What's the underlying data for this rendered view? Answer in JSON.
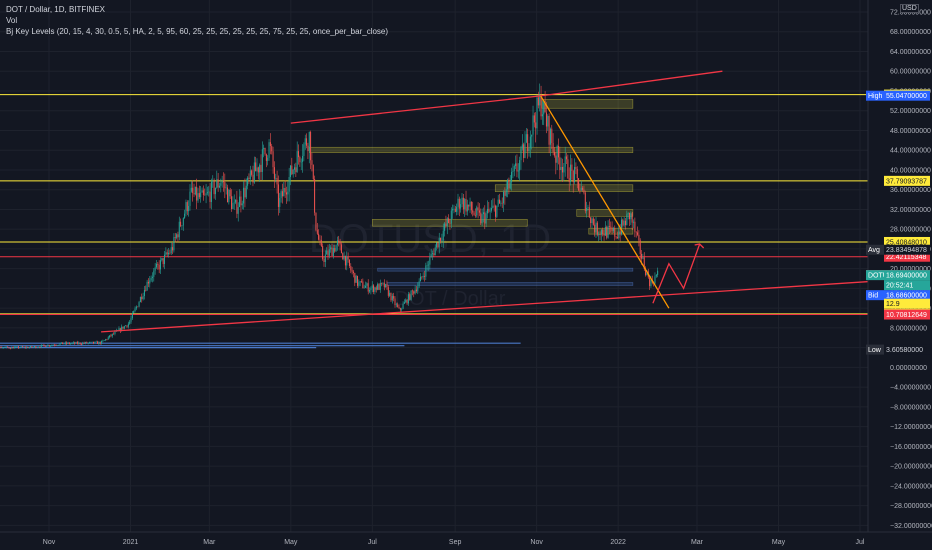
{
  "header": {
    "symbol_line": "DOT / Dollar, 1D, BITFINEX",
    "volume_label": "Vol",
    "indicator_line": "Bj Key Levels (20, 15, 4, 30, 0.5, 5, HA, 2, 5, 95, 60, 25, 25, 25, 25, 25, 25, 75, 25, 25, once_per_bar_close)"
  },
  "currency_badge": "USD",
  "watermark": {
    "symbol": "DOTUSD, 1D",
    "description": "DOT / Dollar"
  },
  "chart_data": {
    "type": "candlestick",
    "price_axis": {
      "ticks": [
        72,
        68,
        64,
        60,
        56,
        52,
        48,
        44,
        40,
        36,
        32,
        28,
        24,
        20,
        16,
        12,
        8,
        4,
        0,
        -4,
        -8,
        -12,
        -16,
        -20,
        -24,
        -28,
        -32
      ],
      "tick_labels": [
        "72.00000000",
        "68.00000000",
        "64.00000000",
        "60.00000000",
        "56.00000000",
        "52.00000000",
        "48.00000000",
        "44.00000000",
        "40.00000000",
        "36.00000000",
        "32.00000000",
        "28.00000000",
        "24.00000000",
        "20.00000000",
        "16.00000000",
        "12.00000000",
        "8.00000000",
        "4.00000000",
        "0.00000000",
        "−4.00000000",
        "−8.00000000",
        "−12.00000000",
        "−16.00000000",
        "−20.00000000",
        "−24.00000000",
        "−28.00000000",
        "−32.00000000"
      ]
    },
    "time_axis": {
      "labels": [
        "Nov",
        "2021",
        "Mar",
        "May",
        "Jul",
        "Sep",
        "Nov",
        "2022",
        "Mar",
        "May",
        "Jul"
      ],
      "dates": [
        "2020-11-01",
        "2021-01-01",
        "2021-03-01",
        "2021-05-01",
        "2021-07-01",
        "2021-09-01",
        "2021-11-01",
        "2022-01-01",
        "2022-03-01",
        "2022-05-01",
        "2022-07-01"
      ]
    },
    "price_path": [
      [
        "2020-08-20",
        2.8
      ],
      [
        "2020-09-10",
        4.2
      ],
      [
        "2020-10-01",
        4.0
      ],
      [
        "2020-10-20",
        4.1
      ],
      [
        "2020-11-10",
        4.8
      ],
      [
        "2020-12-10",
        5.0
      ],
      [
        "2020-12-31",
        9.0
      ],
      [
        "2021-01-15",
        18.0
      ],
      [
        "2021-02-01",
        24.0
      ],
      [
        "2021-02-15",
        35.0
      ],
      [
        "2021-02-25",
        34.0
      ],
      [
        "2021-03-10",
        38.0
      ],
      [
        "2021-03-20",
        32.0
      ],
      [
        "2021-04-01",
        38.0
      ],
      [
        "2021-04-15",
        45.0
      ],
      [
        "2021-04-22",
        33.0
      ],
      [
        "2021-05-05",
        42.0
      ],
      [
        "2021-05-15",
        47.0
      ],
      [
        "2021-05-20",
        28.0
      ],
      [
        "2021-05-25",
        22.0
      ],
      [
        "2021-06-05",
        25.0
      ],
      [
        "2021-06-20",
        17.0
      ],
      [
        "2021-06-30",
        16.0
      ],
      [
        "2021-07-10",
        16.5
      ],
      [
        "2021-07-21",
        11.5
      ],
      [
        "2021-08-05",
        17.0
      ],
      [
        "2021-08-20",
        26.0
      ],
      [
        "2021-09-05",
        34.0
      ],
      [
        "2021-09-20",
        30.0
      ],
      [
        "2021-10-05",
        33.0
      ],
      [
        "2021-10-20",
        42.0
      ],
      [
        "2021-11-04",
        54.0
      ],
      [
        "2021-11-15",
        43.0
      ],
      [
        "2021-12-01",
        38.0
      ],
      [
        "2021-12-15",
        28.0
      ],
      [
        "2021-12-31",
        27.0
      ],
      [
        "2022-01-10",
        31.0
      ],
      [
        "2022-01-20",
        21.0
      ],
      [
        "2022-01-25",
        17.0
      ],
      [
        "2022-01-31",
        19.0
      ]
    ],
    "horizontal_levels": [
      {
        "value": 55.26757299,
        "color": "#ffeb3b",
        "label": "55.26757299"
      },
      {
        "value": 37.79093787,
        "color": "#ffeb3b",
        "label": "37.79093787"
      },
      {
        "value": 25.4084801,
        "color": "#ffeb3b",
        "label": "25.40848010"
      },
      {
        "value": 22.42115348,
        "color": "#f23645",
        "label": "22.42115348"
      },
      {
        "value": 10.83899699,
        "color": "#ffeb3b",
        "label": "10.83899699"
      },
      {
        "value": 10.70812649,
        "color": "#f23645",
        "label": "10.70812649"
      }
    ],
    "price_tags": [
      {
        "name": "High",
        "value": 55.047,
        "label": "55.04700000",
        "bg": "#2962ff"
      },
      {
        "name": "Avg",
        "value": 23.83494878,
        "label": "23.83494878",
        "bg": "#131722"
      },
      {
        "name": "Ask",
        "value": 18.714,
        "label": "18.71400000",
        "bg": "#f23645"
      },
      {
        "name": "DOTUSD",
        "value": 18.694,
        "label": "18.69400000",
        "bg": "#26a69a"
      },
      {
        "name": "",
        "value": null,
        "label": "20:52:41",
        "bg": "#26a69a"
      },
      {
        "name": "Bid",
        "value": 18.686,
        "label": "18.68600000",
        "bg": "#2962ff"
      },
      {
        "name": "",
        "value": 12.9,
        "label": "12.9",
        "bg": "#ffeb3b"
      },
      {
        "name": "Low",
        "value": 3.6058,
        "label": "3.60580000",
        "bg": "#131722"
      }
    ],
    "zones": [
      {
        "from": "2021-11-05",
        "to": "2022-01-12",
        "low": 52.5,
        "high": 54.3,
        "kind": "supply"
      },
      {
        "from": "2021-05-15",
        "to": "2022-01-12",
        "low": 43.5,
        "high": 44.6,
        "kind": "supply"
      },
      {
        "from": "2021-10-01",
        "to": "2022-01-12",
        "low": 35.6,
        "high": 37.0,
        "kind": "supply"
      },
      {
        "from": "2021-12-01",
        "to": "2022-01-12",
        "low": 30.6,
        "high": 32.0,
        "kind": "supply"
      },
      {
        "from": "2021-12-10",
        "to": "2022-01-12",
        "low": 27.0,
        "high": 28.2,
        "kind": "supply"
      },
      {
        "from": "2021-07-01",
        "to": "2021-10-25",
        "low": 28.6,
        "high": 30.0,
        "kind": "supply"
      },
      {
        "from": "2021-07-05",
        "to": "2022-01-12",
        "low": 19.5,
        "high": 20.1,
        "kind": "demand"
      },
      {
        "from": "2021-07-12",
        "to": "2022-01-12",
        "low": 16.6,
        "high": 17.2,
        "kind": "demand"
      }
    ],
    "trendlines": [
      {
        "color": "#f23645",
        "points": [
          [
            "2021-05-01",
            49.5
          ],
          [
            "2021-11-04",
            55.0
          ]
        ]
      },
      {
        "color": "#f23645",
        "points": [
          [
            "2021-11-04",
            55.0
          ],
          [
            "2022-03-20",
            60.0
          ]
        ]
      },
      {
        "color": "#f23645",
        "points": [
          [
            "2020-12-10",
            7.2
          ],
          [
            "2022-07-31",
            17.8
          ]
        ]
      },
      {
        "color": "#ff9800",
        "points": [
          [
            "2021-11-04",
            55.0
          ],
          [
            "2022-02-08",
            12.0
          ]
        ]
      },
      {
        "color": "#f23645",
        "points": [
          [
            "2022-01-27",
            13.0
          ],
          [
            "2022-02-08",
            21.0
          ],
          [
            "2022-02-19",
            16.0
          ],
          [
            "2022-03-03",
            25.0
          ]
        ]
      }
    ]
  }
}
